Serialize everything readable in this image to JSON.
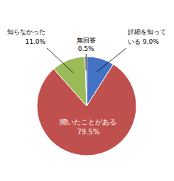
{
  "chart_data": {
    "type": "pie",
    "categories": [
      "詳細を知って",
      "聞いたことがある",
      "知らなかった",
      "無回答"
    ],
    "values": [
      9.0,
      79.5,
      11.0,
      0.5
    ],
    "value_labels": [
      "いる 9.0%",
      "79.5%",
      "11.0%",
      "0.5%"
    ],
    "colors": [
      "#4472C4",
      "#C0504D",
      "#9BBB59",
      "#808080"
    ],
    "data_labels": true
  }
}
